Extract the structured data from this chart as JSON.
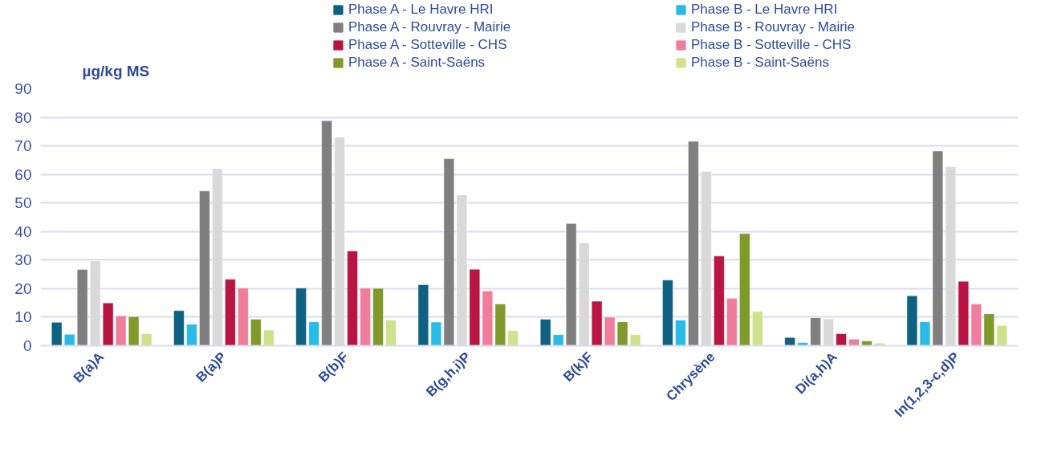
{
  "chart_data": {
    "type": "bar",
    "ylabel": "µg/kg MS",
    "categories": [
      "B(a)A",
      "B(a)P",
      "B(b)F",
      "B(g,h,i)P",
      "B(k)F",
      "Chrysène",
      "Di(a,h)A",
      "In(1,2,3-c,d)P"
    ],
    "series": [
      {
        "name": "Phase A - Le Havre HRI",
        "color": "#0e6180",
        "values": [
          8.2,
          12.3,
          20.2,
          21.4,
          9.3,
          23,
          2.9,
          17.5
        ]
      },
      {
        "name": "Phase B - Le Havre HRI",
        "color": "#29bbe8",
        "values": [
          4,
          7.5,
          8.4,
          8.3,
          3.9,
          9,
          1.1,
          8.4
        ]
      },
      {
        "name": "Phase A - Rouvray - Mairie",
        "color": "#7f7f7f",
        "values": [
          26.7,
          54.2,
          78.8,
          65.5,
          42.8,
          71.6,
          9.8,
          68.2
        ]
      },
      {
        "name": "Phase B - Rouvray - Mairie",
        "color": "#d9d9d9",
        "values": [
          29.7,
          62,
          73,
          52.8,
          36,
          61,
          9.4,
          62.7
        ]
      },
      {
        "name": "Phase A - Sotteville - CHS",
        "color": "#b91543",
        "values": [
          15,
          23.3,
          33.2,
          26.8,
          15.6,
          31.4,
          4.2,
          22.6
        ]
      },
      {
        "name": "Phase B - Sotteville - CHS",
        "color": "#f07d9b",
        "values": [
          10.5,
          20.2,
          20.2,
          19.2,
          10,
          16.6,
          2.3,
          14.6
        ]
      },
      {
        "name": "Phase A - Saint-Saëns",
        "color": "#7f9a2b",
        "values": [
          10.2,
          9.3,
          20.1,
          14.6,
          8.4,
          39.3,
          1.7,
          11.2
        ]
      },
      {
        "name": "Phase B - Saint-Saëns",
        "color": "#cde28a",
        "values": [
          4.2,
          5.5,
          9,
          5.3,
          3.9,
          12,
          0.9,
          7.1
        ]
      }
    ],
    "ylim": [
      0,
      90
    ],
    "yticks": [
      0,
      10,
      20,
      30,
      40,
      50,
      60,
      70,
      80,
      90
    ],
    "grid": "y",
    "legend": "top right"
  }
}
